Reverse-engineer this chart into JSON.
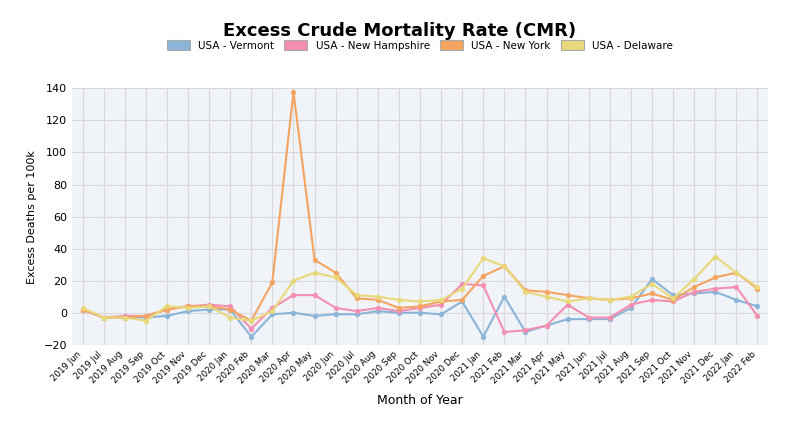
{
  "title": "Excess Crude Mortality Rate (CMR)",
  "xlabel": "Month of Year",
  "ylabel": "Excess Deaths per 100k",
  "background_color": "#ffffff",
  "grid_color": "#d8d8d8",
  "ylim": [
    -20,
    140
  ],
  "yticks": [
    -20,
    0,
    20,
    40,
    60,
    80,
    100,
    120,
    140
  ],
  "x_labels": [
    "2019 Jun",
    "2019 Jul",
    "2019 Aug",
    "2019 Sep",
    "2019 Oct",
    "2019 Nov",
    "2019 Dec",
    "2020 Jan",
    "2020 Feb",
    "2020 Mar",
    "2020 Apr",
    "2020 May",
    "2020 Jun",
    "2020 Jul",
    "2020 Aug",
    "2020 Sep",
    "2020 Oct",
    "2020 Nov",
    "2020 Dec",
    "2021 Jan",
    "2021 Feb",
    "2021 Mar",
    "2021 Apr",
    "2021 May",
    "2021 Jun",
    "2021 Jul",
    "2021 Aug",
    "2021 Sep",
    "2021 Oct",
    "2021 Nov",
    "2021 Dec",
    "2022 Jan",
    "2022 Feb"
  ],
  "series": {
    "USA - Vermont": {
      "color": "#8ab4d8",
      "values": [
        2,
        -3,
        -3,
        -3,
        -2,
        1,
        2,
        2,
        -15,
        -1,
        0,
        -2,
        -1,
        -1,
        1,
        0,
        0,
        -1,
        7,
        -15,
        10,
        -12,
        -8,
        -4,
        -4,
        -4,
        3,
        21,
        11,
        12,
        13,
        8,
        4
      ]
    },
    "USA - New Hampshire": {
      "color": "#f48fb1",
      "values": [
        2,
        -3,
        -2,
        -2,
        2,
        4,
        5,
        4,
        -10,
        3,
        11,
        11,
        3,
        1,
        3,
        1,
        3,
        5,
        18,
        17,
        -12,
        -11,
        -8,
        5,
        -3,
        -3,
        5,
        8,
        7,
        13,
        15,
        16,
        -2
      ]
    },
    "USA - New York": {
      "color": "#f4a460",
      "values": [
        2,
        -3,
        -3,
        -2,
        2,
        4,
        4,
        2,
        -5,
        19,
        138,
        33,
        25,
        9,
        8,
        3,
        4,
        7,
        8,
        23,
        29,
        14,
        13,
        11,
        9,
        8,
        9,
        12,
        8,
        16,
        22,
        25,
        15
      ]
    },
    "USA - Delaware": {
      "color": "#e8d87a",
      "values": [
        3,
        -3,
        -3,
        -5,
        4,
        3,
        4,
        -3,
        -5,
        1,
        20,
        25,
        22,
        11,
        10,
        8,
        7,
        8,
        15,
        34,
        29,
        13,
        10,
        7,
        9,
        8,
        10,
        18,
        9,
        21,
        35,
        25,
        16
      ]
    }
  },
  "legend_entries": [
    "USA - Vermont",
    "USA - New Hampshire",
    "USA - New York",
    "USA - Delaware"
  ],
  "legend_colors": [
    "#8ab4d8",
    "#f48fb1",
    "#f4a460",
    "#e8d87a"
  ]
}
